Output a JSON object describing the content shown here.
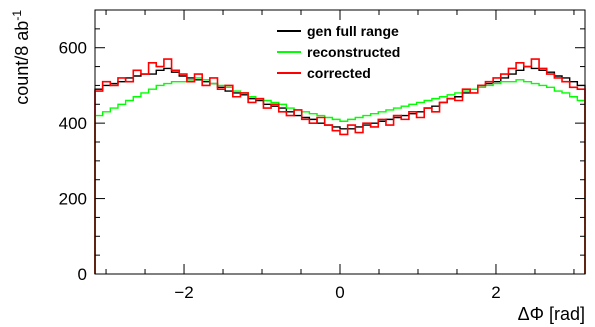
{
  "chart_data": {
    "type": "histogram",
    "title": "",
    "xlabel": "ΔΦ [rad]",
    "ylabel": {
      "base": "count/8 ab",
      "superscript": "-1"
    },
    "xlim": [
      -3.14159,
      3.14159
    ],
    "ylim": [
      0,
      700
    ],
    "xticks": [
      -2,
      0,
      2
    ],
    "xtick_labels": [
      "−2",
      "0",
      "2"
    ],
    "yticks": [
      0,
      200,
      400,
      600
    ],
    "ytick_labels": [
      "0",
      "200",
      "400",
      "600"
    ],
    "bins": 64,
    "grid": false,
    "legend_position": "top-center",
    "series": [
      {
        "name": "gen full range",
        "color": "#000000",
        "values": [
          490,
          500,
          505,
          510,
          520,
          525,
          530,
          530,
          540,
          545,
          535,
          525,
          520,
          515,
          510,
          505,
          495,
          485,
          480,
          475,
          465,
          460,
          450,
          445,
          440,
          430,
          420,
          415,
          410,
          400,
          395,
          390,
          385,
          385,
          390,
          395,
          400,
          405,
          410,
          415,
          420,
          425,
          430,
          440,
          445,
          455,
          465,
          470,
          480,
          490,
          500,
          505,
          510,
          520,
          530,
          540,
          550,
          545,
          540,
          535,
          525,
          520,
          510,
          500
        ]
      },
      {
        "name": "reconstructed",
        "color": "#00ff00",
        "values": [
          420,
          430,
          440,
          450,
          460,
          470,
          480,
          490,
          500,
          505,
          510,
          510,
          515,
          520,
          515,
          505,
          500,
          495,
          485,
          480,
          470,
          465,
          460,
          455,
          450,
          440,
          435,
          430,
          425,
          420,
          415,
          410,
          405,
          410,
          415,
          420,
          425,
          430,
          435,
          440,
          445,
          450,
          455,
          460,
          465,
          470,
          475,
          480,
          485,
          490,
          495,
          500,
          505,
          510,
          510,
          515,
          510,
          505,
          500,
          495,
          485,
          480,
          470,
          460
        ]
      },
      {
        "name": "corrected",
        "color": "#ff0000",
        "values": [
          485,
          510,
          500,
          520,
          510,
          540,
          530,
          560,
          550,
          570,
          540,
          530,
          510,
          530,
          500,
          520,
          490,
          500,
          470,
          480,
          455,
          465,
          440,
          450,
          430,
          420,
          435,
          410,
          400,
          415,
          395,
          380,
          370,
          395,
          375,
          400,
          390,
          410,
          395,
          420,
          410,
          430,
          415,
          440,
          430,
          455,
          465,
          460,
          490,
          480,
          500,
          510,
          520,
          530,
          545,
          560,
          550,
          570,
          545,
          530,
          520,
          510,
          495,
          490
        ]
      }
    ]
  }
}
